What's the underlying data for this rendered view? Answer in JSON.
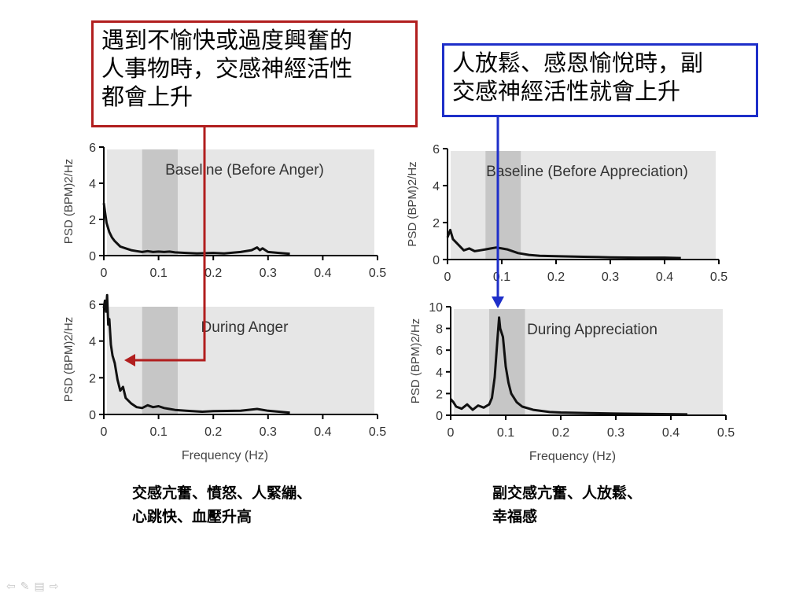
{
  "callouts": {
    "left": {
      "lines": [
        "遇到不愉快或過度興奮的",
        "人事物時，交感神經活性",
        "都會上升"
      ],
      "color": "#b11e1e"
    },
    "right": {
      "lines": [
        "人放鬆、感恩愉悅時，副",
        "交感神經活性就會上升"
      ],
      "color": "#1e2fc9"
    }
  },
  "captions": {
    "left": [
      "交感亢奮、憤怒、人緊繃、",
      "心跳快、血壓升高"
    ],
    "right": [
      "副交感亢奮、人放鬆、",
      "幸福感"
    ]
  },
  "nav_icons": [
    "arrow-left-icon",
    "pen-icon",
    "menu-icon",
    "arrow-right-icon"
  ],
  "chart_data": [
    {
      "type": "line",
      "title": "Baseline (Before Anger)",
      "ylabel": "PSD (BPM)2/Hz",
      "xlabel": "",
      "xlim": [
        0,
        0.5
      ],
      "ylim": [
        0,
        6
      ],
      "xticks": [
        "0",
        "0.1",
        "0.2",
        "0.3",
        "0.4",
        "0.5"
      ],
      "yticks": [
        "0",
        "2",
        "4",
        "6"
      ],
      "band": [
        0.07,
        0.135
      ],
      "x": [
        0,
        0.005,
        0.01,
        0.015,
        0.02,
        0.03,
        0.04,
        0.05,
        0.06,
        0.07,
        0.08,
        0.09,
        0.1,
        0.11,
        0.12,
        0.13,
        0.15,
        0.17,
        0.2,
        0.22,
        0.25,
        0.27,
        0.28,
        0.285,
        0.29,
        0.3,
        0.32,
        0.34
      ],
      "y": [
        2.9,
        1.8,
        1.3,
        1.0,
        0.8,
        0.5,
        0.4,
        0.3,
        0.25,
        0.2,
        0.25,
        0.2,
        0.22,
        0.2,
        0.22,
        0.18,
        0.15,
        0.12,
        0.15,
        0.12,
        0.2,
        0.3,
        0.45,
        0.3,
        0.4,
        0.2,
        0.15,
        0.1
      ]
    },
    {
      "type": "line",
      "title": "Baseline (Before Appreciation)",
      "ylabel": "PSD (BPM)2/Hz",
      "xlabel": "",
      "xlim": [
        0,
        0.5
      ],
      "ylim": [
        0,
        6
      ],
      "xticks": [
        "0",
        "0.1",
        "0.2",
        "0.3",
        "0.4",
        "0.5"
      ],
      "yticks": [
        "0",
        "2",
        "4",
        "6"
      ],
      "band": [
        0.07,
        0.135
      ],
      "x": [
        0,
        0.005,
        0.01,
        0.02,
        0.03,
        0.04,
        0.05,
        0.06,
        0.07,
        0.08,
        0.09,
        0.1,
        0.11,
        0.12,
        0.13,
        0.15,
        0.17,
        0.2,
        0.25,
        0.3,
        0.35,
        0.4,
        0.43
      ],
      "y": [
        1.2,
        1.6,
        1.1,
        0.8,
        0.5,
        0.6,
        0.45,
        0.5,
        0.55,
        0.6,
        0.65,
        0.6,
        0.55,
        0.45,
        0.35,
        0.25,
        0.2,
        0.18,
        0.15,
        0.12,
        0.1,
        0.1,
        0.08
      ]
    },
    {
      "type": "line",
      "title": "During Anger",
      "ylabel": "PSD (BPM)2/Hz",
      "xlabel": "Frequency (Hz)",
      "xlim": [
        0,
        0.5
      ],
      "ylim": [
        0,
        6
      ],
      "xticks": [
        "0",
        "0.1",
        "0.2",
        "0.3",
        "0.4",
        "0.5"
      ],
      "yticks": [
        "0",
        "2",
        "4",
        "6"
      ],
      "band": [
        0.07,
        0.135
      ],
      "x": [
        0,
        0.002,
        0.004,
        0.006,
        0.008,
        0.01,
        0.013,
        0.016,
        0.02,
        0.025,
        0.03,
        0.035,
        0.04,
        0.05,
        0.06,
        0.07,
        0.08,
        0.09,
        0.1,
        0.11,
        0.12,
        0.13,
        0.15,
        0.18,
        0.2,
        0.25,
        0.28,
        0.3,
        0.34
      ],
      "y": [
        5.8,
        6.2,
        5.6,
        6.5,
        4.9,
        5.2,
        3.8,
        3.2,
        2.8,
        1.9,
        1.3,
        1.5,
        0.9,
        0.6,
        0.4,
        0.35,
        0.5,
        0.4,
        0.45,
        0.35,
        0.3,
        0.25,
        0.2,
        0.15,
        0.18,
        0.2,
        0.3,
        0.2,
        0.1
      ]
    },
    {
      "type": "line",
      "title": "During Appreciation",
      "ylabel": "PSD (BPM)2/Hz",
      "xlabel": "Frequency (Hz)",
      "xlim": [
        0,
        0.5
      ],
      "ylim": [
        0,
        10
      ],
      "xticks": [
        "0",
        "0.1",
        "0.2",
        "0.3",
        "0.4",
        "0.5"
      ],
      "yticks": [
        "0",
        "2",
        "4",
        "6",
        "8",
        "10"
      ],
      "band": [
        0.07,
        0.135
      ],
      "x": [
        0,
        0.005,
        0.01,
        0.02,
        0.03,
        0.04,
        0.05,
        0.06,
        0.07,
        0.075,
        0.08,
        0.085,
        0.088,
        0.09,
        0.095,
        0.1,
        0.105,
        0.11,
        0.12,
        0.13,
        0.15,
        0.18,
        0.2,
        0.25,
        0.3,
        0.35,
        0.4,
        0.43
      ],
      "y": [
        1.5,
        1.2,
        0.8,
        0.6,
        1.0,
        0.5,
        0.9,
        0.7,
        1.0,
        1.6,
        3.5,
        7.0,
        9.0,
        8.0,
        7.2,
        4.5,
        3.0,
        2.0,
        1.2,
        0.8,
        0.5,
        0.3,
        0.25,
        0.2,
        0.15,
        0.12,
        0.1,
        0.08
      ]
    }
  ]
}
